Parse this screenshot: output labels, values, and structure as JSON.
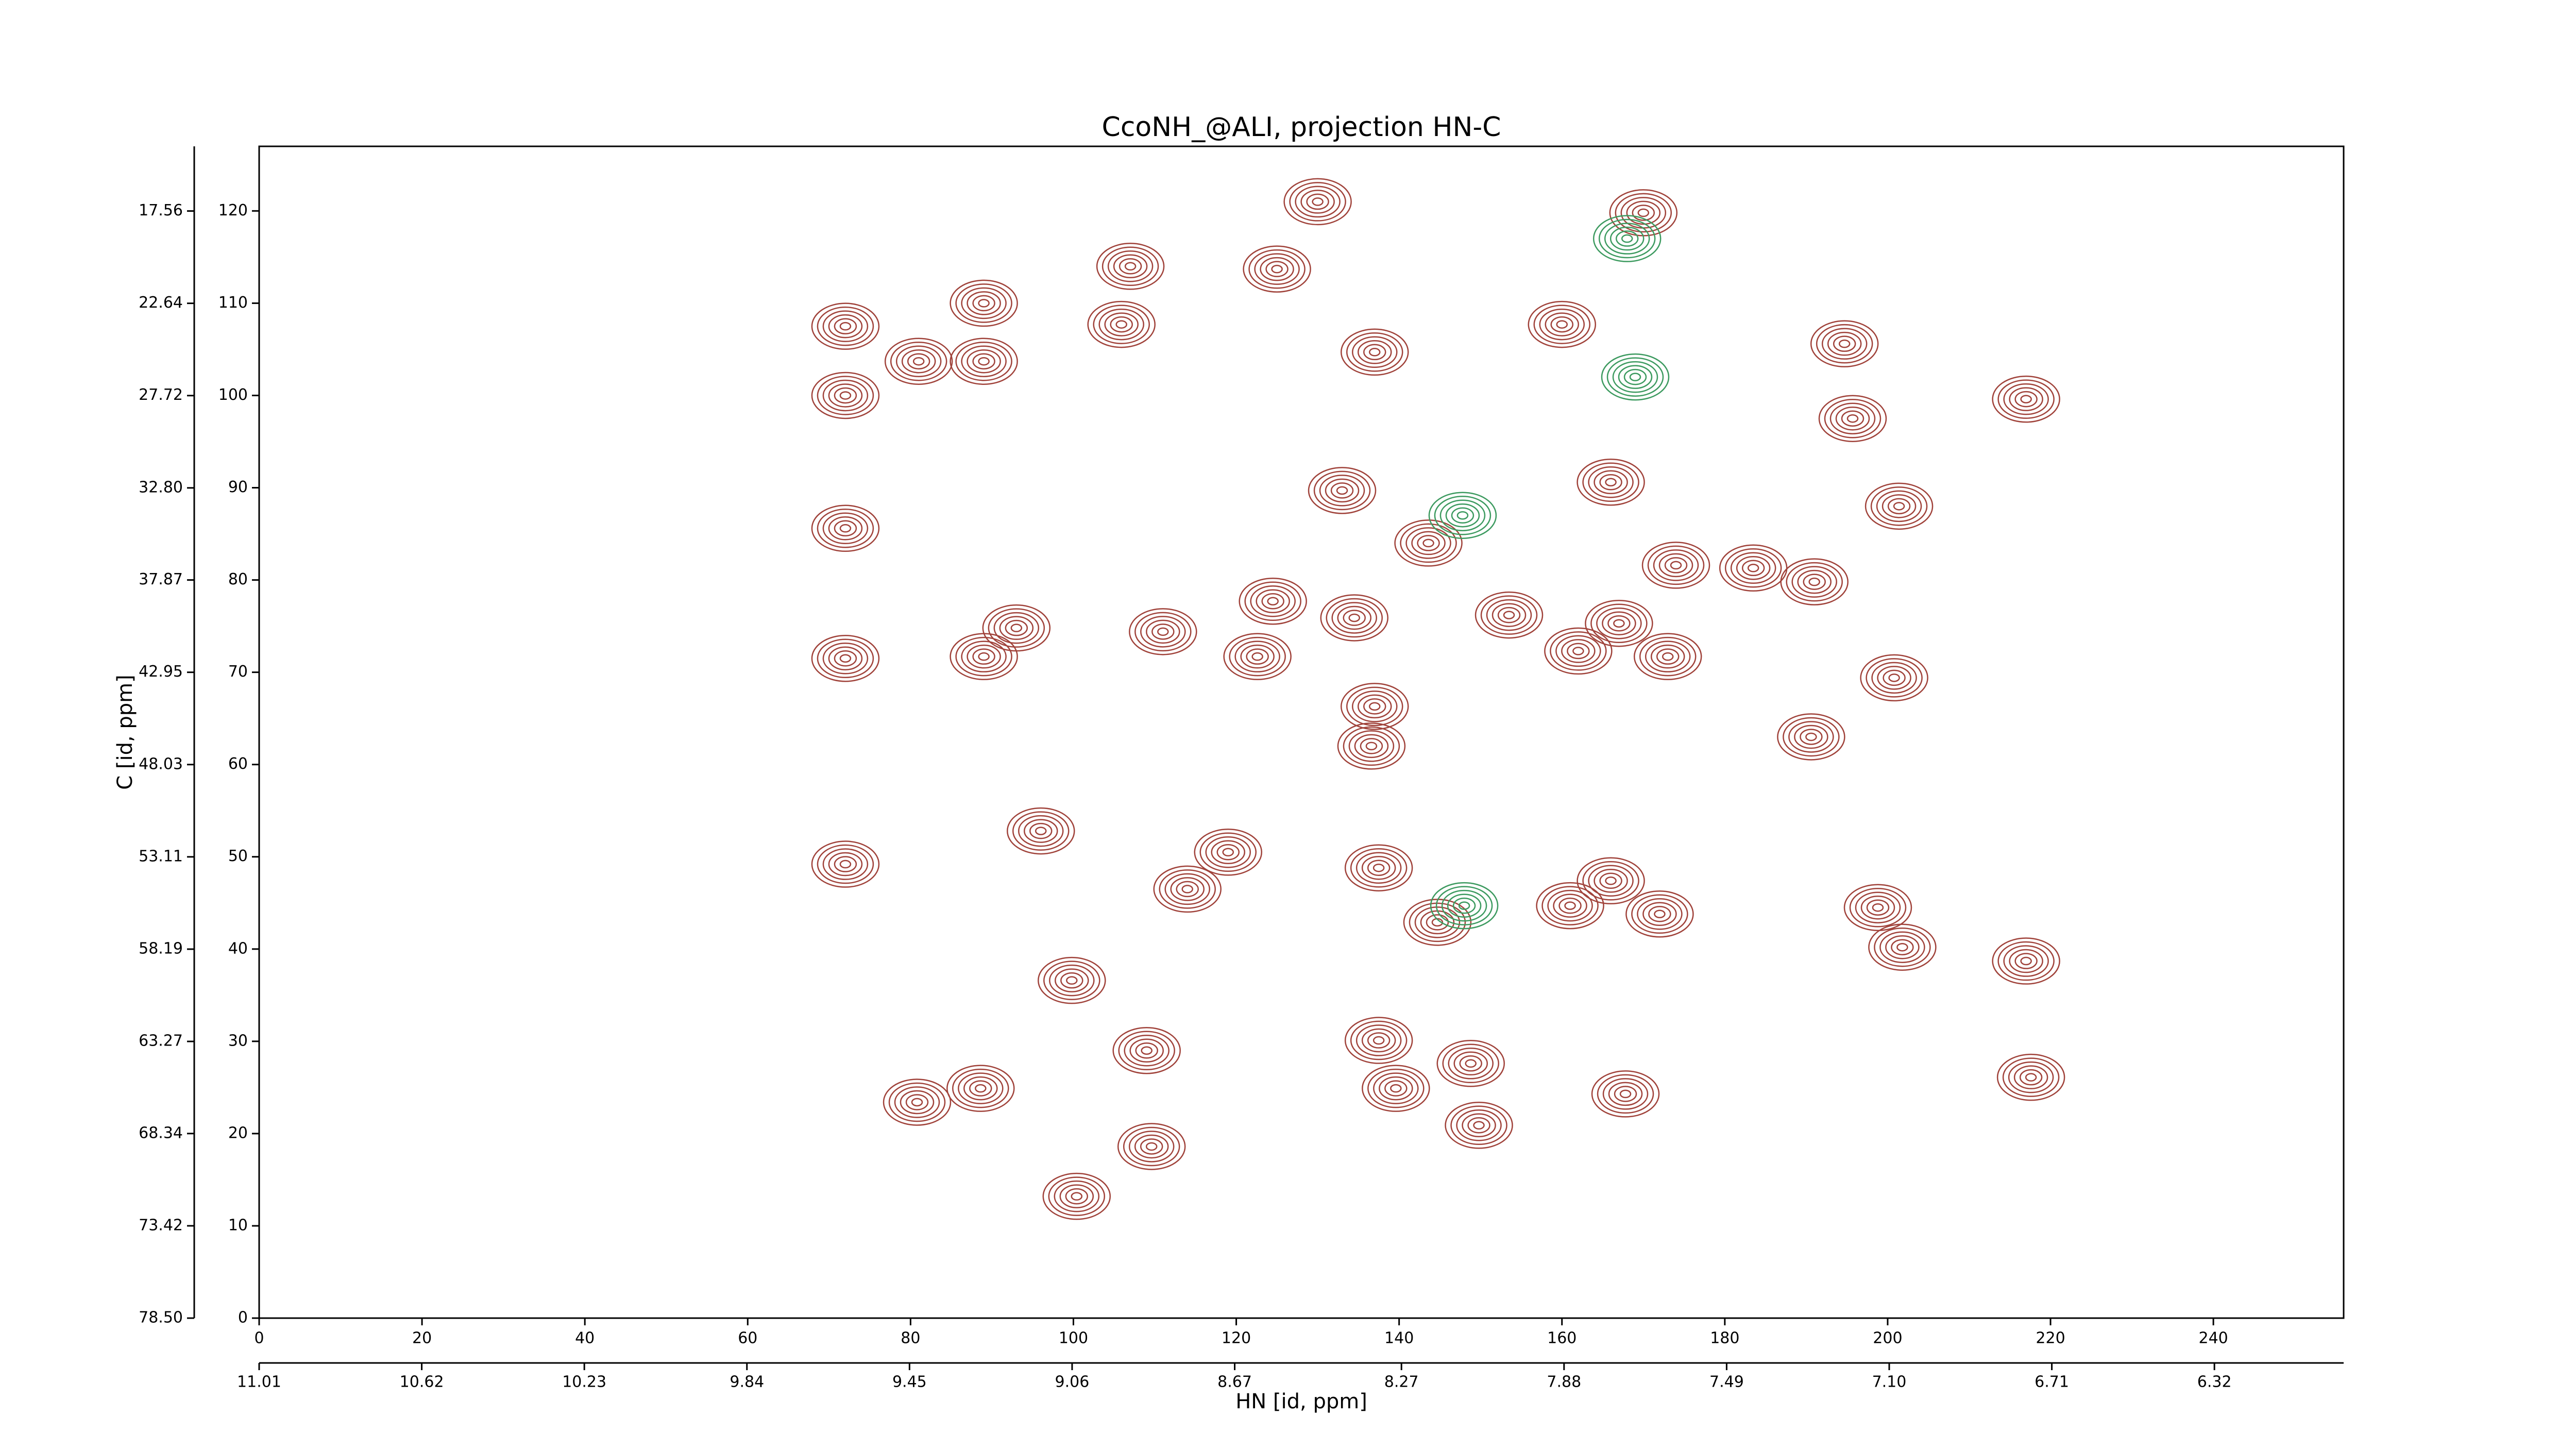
{
  "chart_data": {
    "type": "contour",
    "title": "CcoNH_@ALI, projection HN-C",
    "xlabel": "HN [id, ppm]",
    "ylabel": "C [id, ppm]",
    "xlim": [
      0,
      256
    ],
    "ylim": [
      0,
      127
    ],
    "xticks": [
      0,
      20,
      40,
      60,
      80,
      100,
      120,
      140,
      160,
      180,
      200,
      220,
      240
    ],
    "yticks": [
      0,
      10,
      20,
      30,
      40,
      50,
      60,
      70,
      80,
      90,
      100,
      110,
      120
    ],
    "x2lim": [
      11.01,
      6.01
    ],
    "x2ticks": [
      11.01,
      10.62,
      10.23,
      9.84,
      9.45,
      9.06,
      8.67,
      8.27,
      7.88,
      7.49,
      {
        "value": 7.1,
        "label": "7.10"
      },
      6.71,
      6.32
    ],
    "y2lim": [
      78.5,
      14.0
    ],
    "y2ticks": [
      {
        "value": 78.5,
        "label": "78.50"
      },
      73.42,
      68.34,
      63.27,
      58.19,
      53.11,
      48.03,
      42.95,
      37.87,
      {
        "value": 32.8,
        "label": "32.80"
      },
      27.72,
      22.64,
      17.56
    ],
    "series": [
      {
        "color": "#a0423a",
        "x": [
          72,
          72,
          89,
          89,
          81,
          107,
          125,
          130,
          137,
          133,
          143.6,
          72,
          93,
          89,
          72,
          111,
          122.6,
          134.5,
          137,
          136.6,
          153.5,
          162,
          167,
          173,
          174,
          183.5,
          191,
          200.8,
          190.6,
          201.4,
          195.7,
          194.7,
          217,
          160,
          170,
          166,
          119,
          114,
          96,
          137.5,
          144.7,
          161,
          166,
          172,
          198.8,
          201.8,
          217,
          99.8,
          109,
          137.5,
          139.6,
          148.8,
          167.8,
          149.8,
          109.6,
          100.4,
          80.8,
          88.6,
          217.6,
          72,
          124.5,
          105.9
        ],
        "y": [
          100,
          107.5,
          110,
          103.7,
          103.7,
          114,
          113.7,
          121,
          104.7,
          89.7,
          84,
          85.6,
          74.8,
          71.7,
          71.5,
          74.4,
          71.7,
          75.9,
          66.3,
          62,
          76.2,
          72.3,
          75.3,
          71.7,
          81.6,
          81.3,
          79.8,
          69.4,
          63,
          88,
          97.5,
          105.6,
          99.6,
          107.7,
          119.8,
          90.6,
          50.5,
          46.5,
          52.8,
          48.8,
          42.9,
          44.7,
          47.4,
          43.8,
          44.5,
          40.2,
          38.7,
          36.6,
          29,
          30.1,
          24.9,
          27.6,
          24.3,
          20.9,
          18.6,
          13.2,
          23.4,
          24.9,
          26.1,
          49.2,
          77.7,
          107.7
        ]
      },
      {
        "color": "#3c9a5f",
        "x": [
          148,
          168,
          169,
          147.8
        ],
        "y": [
          44.7,
          117,
          102,
          87
        ]
      }
    ]
  }
}
